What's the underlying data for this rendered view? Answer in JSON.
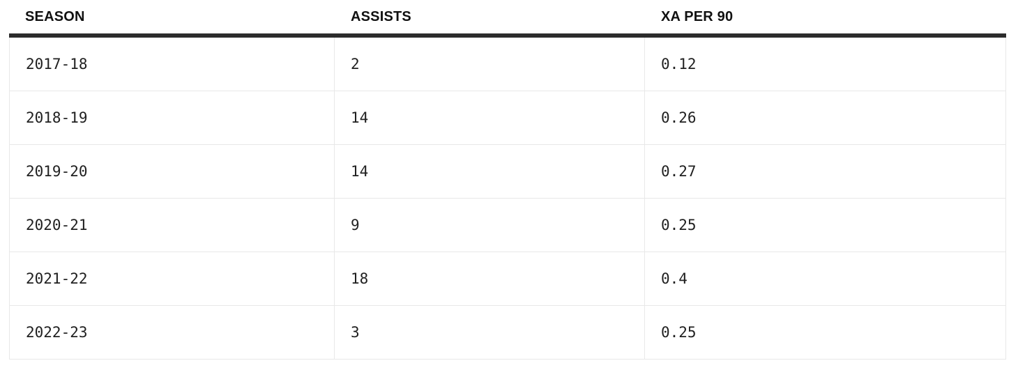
{
  "chart_data": {
    "type": "table",
    "title": "",
    "columns": [
      "SEASON",
      "ASSISTS",
      "XA PER 90"
    ],
    "rows": [
      [
        "2017-18",
        "2",
        "0.12"
      ],
      [
        "2018-19",
        "14",
        "0.26"
      ],
      [
        "2019-20",
        "14",
        "0.27"
      ],
      [
        "2020-21",
        "9",
        "0.25"
      ],
      [
        "2021-22",
        "18",
        "0.4"
      ],
      [
        "2022-23",
        "3",
        "0.25"
      ]
    ],
    "layout": {
      "grid": "on",
      "header_rule": "thick-dark",
      "column_dividers": "light-gray"
    }
  },
  "colors": {
    "header_border": "#2c2c2c",
    "grid_line": "#e8e8e8",
    "header_text": "#111111",
    "cell_text": "#202020",
    "background": "#ffffff"
  }
}
